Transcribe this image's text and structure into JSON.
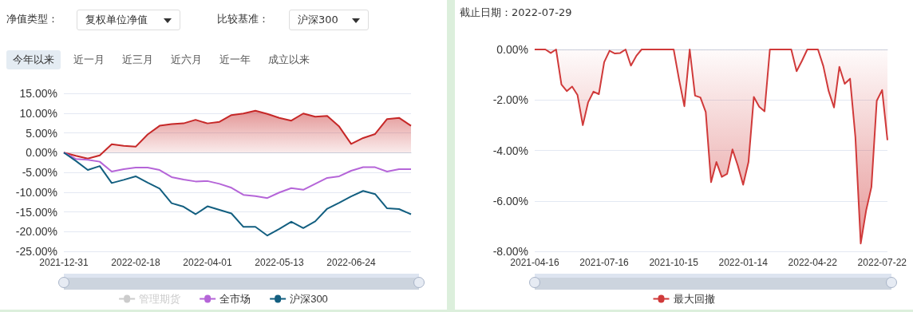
{
  "chart_data": [
    {
      "type": "line",
      "annotations": [
        "净值类型：",
        "复权单位净值",
        "比较基准：",
        "沪深300",
        "今年以来",
        "近一月",
        "近三月",
        "近六月",
        "近一年",
        "成立以来"
      ],
      "categories": [
        "2021-12-31",
        null,
        null,
        null,
        null,
        null,
        "2022-02-18",
        null,
        null,
        null,
        null,
        null,
        "2022-04-01",
        null,
        null,
        null,
        null,
        null,
        "2022-05-13",
        null,
        null,
        null,
        null,
        null,
        "2022-06-24",
        null,
        null,
        null,
        null,
        null
      ],
      "series": [
        {
          "type": "area",
          "color": "#c62828",
          "values": [
            0,
            -0.8,
            -1.5,
            -0.7,
            2.1,
            1.7,
            1.5,
            4.6,
            6.8,
            7.2,
            7.4,
            8.3,
            7.4,
            7.8,
            9.5,
            9.9,
            10.6,
            9.8,
            8.8,
            8.1,
            9.9,
            9.1,
            9.3,
            6.6,
            2.2,
            3.7,
            4.7,
            8.5,
            8.8,
            6.8
          ]
        },
        {
          "name": "管理期货",
          "color": "#cccccc",
          "values": [
            null,
            null,
            null,
            null,
            null,
            null,
            null,
            null,
            null,
            null,
            null,
            null,
            null,
            null,
            null,
            null,
            null,
            null,
            null,
            null,
            null,
            null,
            null,
            null,
            null,
            null,
            null,
            null,
            null,
            null
          ]
        },
        {
          "name": "全市场",
          "color": "#b565d8",
          "values": [
            0,
            -1.6,
            -1.8,
            -2.3,
            -4.8,
            -4.2,
            -3.8,
            -3.8,
            -4.4,
            -6.2,
            -6.8,
            -7.3,
            -7.2,
            -7.9,
            -8.9,
            -10.7,
            -11.0,
            -11.5,
            -10.1,
            -9.0,
            -9.4,
            -7.9,
            -6.4,
            -6.0,
            -4.6,
            -3.7,
            -3.7,
            -4.8,
            -4.2,
            -4.2
          ]
        },
        {
          "name": "沪深300",
          "color": "#135f80",
          "values": [
            0,
            -2.1,
            -4.4,
            -3.4,
            -7.7,
            -6.9,
            -6.0,
            -7.6,
            -9.1,
            -12.8,
            -13.7,
            -15.6,
            -13.6,
            -14.5,
            -15.4,
            -18.8,
            -18.8,
            -21.0,
            -19.3,
            -17.5,
            -19.1,
            -17.4,
            -14.2,
            -12.7,
            -11.1,
            -9.7,
            -10.5,
            -14.1,
            -14.3,
            -15.6
          ]
        }
      ],
      "ylim": [
        -25,
        15
      ],
      "yticks": [
        {
          "value": -25,
          "label": "-25.00%"
        },
        {
          "value": -20,
          "label": "-20.00%"
        },
        {
          "value": -15,
          "label": "-15.00%"
        },
        {
          "value": -10,
          "label": "-10.00%"
        },
        {
          "value": -5,
          "label": "-5.00%"
        },
        {
          "value": 0,
          "label": "0.00%"
        },
        {
          "value": 5,
          "label": "5.00%"
        },
        {
          "value": 10,
          "label": "10.00%"
        },
        {
          "value": 15,
          "label": "15.00%"
        }
      ],
      "grid": "y",
      "legend": "bottom"
    },
    {
      "type": "area",
      "annotations": [
        "截止日期：2022-07-29"
      ],
      "categories": [
        "2021-04-16",
        null,
        null,
        null,
        null,
        null,
        null,
        null,
        null,
        null,
        null,
        null,
        null,
        "2021-07-16",
        null,
        null,
        null,
        null,
        null,
        null,
        null,
        null,
        null,
        null,
        null,
        null,
        "2021-10-15",
        null,
        null,
        null,
        null,
        null,
        null,
        null,
        null,
        null,
        null,
        null,
        null,
        "2022-01-14",
        null,
        null,
        null,
        null,
        null,
        null,
        null,
        null,
        null,
        null,
        null,
        null,
        "2022-04-22",
        null,
        null,
        null,
        null,
        null,
        null,
        null,
        null,
        null,
        null,
        null,
        null,
        "2022-07-22",
        null
      ],
      "series": [
        {
          "name": "最大回撤",
          "color": "#d03a3a",
          "values": [
            0,
            0,
            0,
            -0.14,
            0,
            -1.39,
            -1.65,
            -1.47,
            -1.8,
            -3.0,
            -2.09,
            -1.67,
            -1.77,
            -0.5,
            -0.05,
            -0.16,
            -0.14,
            0,
            -0.64,
            -0.26,
            0,
            0,
            0,
            0,
            0,
            0,
            0,
            -1.18,
            -2.25,
            0,
            -1.83,
            -1.9,
            -2.48,
            -5.26,
            -4.46,
            -5.05,
            -4.93,
            -3.96,
            -4.6,
            -5.36,
            -4.46,
            -1.88,
            -2.27,
            -2.45,
            0,
            0,
            0,
            0,
            0,
            -0.86,
            -0.45,
            0,
            0,
            0,
            -0.66,
            -1.65,
            -2.3,
            -0.69,
            -1.36,
            -1.16,
            -3.47,
            -7.69,
            -6.39,
            -5.45,
            -2.03,
            -1.61,
            -3.59
          ]
        }
      ],
      "ylim": [
        -8,
        0
      ],
      "yticks": [
        {
          "value": -8,
          "label": "-8.00%"
        },
        {
          "value": -6,
          "label": "-6.00%"
        },
        {
          "value": -4,
          "label": "-4.00%"
        },
        {
          "value": -2,
          "label": "-2.00%"
        },
        {
          "value": 0,
          "label": "0.00%"
        }
      ],
      "grid": "y",
      "legend": "bottom"
    }
  ]
}
